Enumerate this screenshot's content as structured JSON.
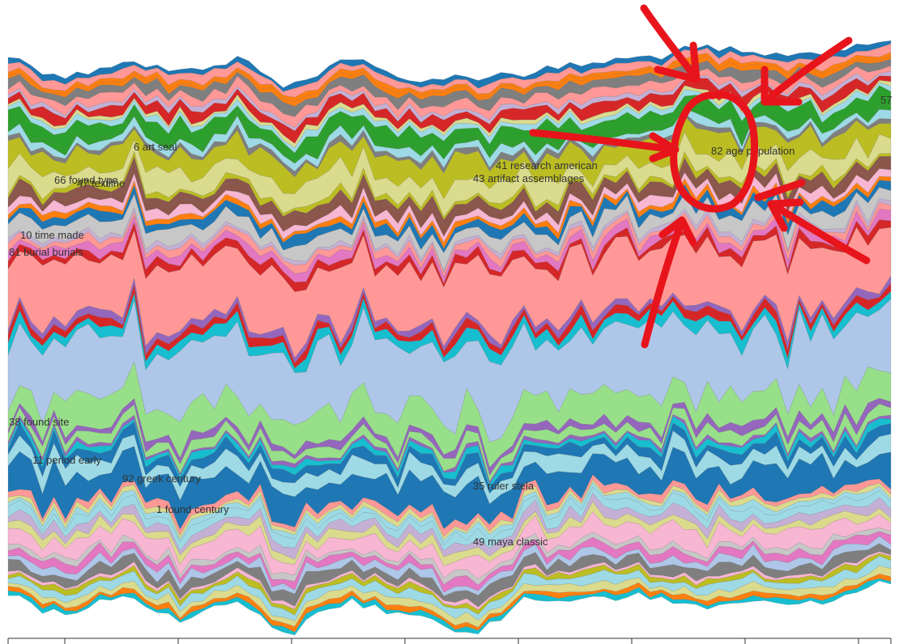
{
  "chart_data": {
    "type": "area",
    "subtype": "streamgraph",
    "x_tick_count": 9,
    "palette": [
      "#1f77b4",
      "#aec7e8",
      "#ff7f0e",
      "#ffbb78",
      "#2ca02c",
      "#98df8a",
      "#d62728",
      "#ff9896",
      "#9467bd",
      "#c5b0d5",
      "#8c564b",
      "#c49c94",
      "#e377c2",
      "#f7b6d2",
      "#7f7f7f",
      "#c7c7c7",
      "#bcbd22",
      "#dbdb8d",
      "#17becf",
      "#9edae5"
    ],
    "labeled_topics": [
      {
        "label": "6 art seal",
        "color": "#2ca02c"
      },
      {
        "label": "66 found type",
        "color": "#dbdb8d"
      },
      {
        "label": "47 textline",
        "color": "#dbdb8d"
      },
      {
        "label": "10 time made",
        "color": "#c7c7c7"
      },
      {
        "label": "81 burial burials",
        "color": "#ff9896"
      },
      {
        "label": "38 found site",
        "color": "#aec7e8"
      },
      {
        "label": "11 period early",
        "color": "#98df8a"
      },
      {
        "label": "92 greek century",
        "color": "#9edae5"
      },
      {
        "label": "1 found century",
        "color": "#1f77b4"
      },
      {
        "label": "41 research american",
        "color": "#bcbd22"
      },
      {
        "label": "43 artifact assemblages",
        "color": "#bcbd22"
      },
      {
        "label": "82 age population",
        "color": "#7f7f7f"
      },
      {
        "label": "35 ruler stela",
        "color": "#98df8a"
      },
      {
        "label": "49 maya classic",
        "color": "#f7b6d2"
      },
      {
        "label": "57",
        "color": "#9edae5"
      }
    ],
    "annotation": {
      "type": "hand-drawn circle with arrows",
      "target": "82 age population",
      "color": "#e8141c"
    }
  }
}
